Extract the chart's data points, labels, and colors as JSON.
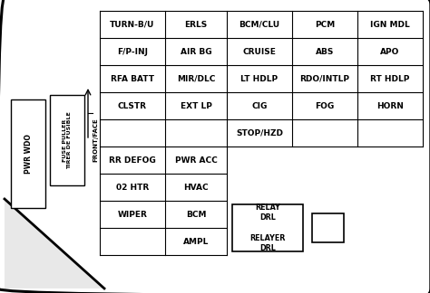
{
  "bg_color": "#e8e8e8",
  "box_color": "#ffffff",
  "border_color": "#000000",
  "rows": [
    [
      "TURN-B/U",
      "ERLS",
      "BCM/CLU",
      "PCM",
      "IGN MDL"
    ],
    [
      "F/P-INJ",
      "AIR BG",
      "CRUISE",
      "ABS",
      "APO"
    ],
    [
      "RFA BATT",
      "MIR/DLC",
      "LT HDLP",
      "RDO/INTLP",
      "RT HDLP"
    ],
    [
      "CLSTR",
      "EXT LP",
      "CIG",
      "FOG",
      "HORN"
    ],
    [
      "",
      "",
      "STOP/HZD",
      "",
      ""
    ],
    [
      "RR DEFOG",
      "PWR ACC",
      "",
      "",
      ""
    ],
    [
      "02 HTR",
      "HVAC",
      "",
      "",
      ""
    ],
    [
      "WIPER",
      "BCM",
      "",
      "",
      ""
    ],
    [
      "",
      "AMPL",
      "",
      "",
      ""
    ]
  ],
  "pwr_wdo": "PWR WDO",
  "fuse_puller": "FUSE PULLER\nTIRER DE FUSIBLE",
  "front_face": "FRONT/FACE",
  "relay_text": "RELAY\nDRL\n\nRELAYER\nDRL"
}
